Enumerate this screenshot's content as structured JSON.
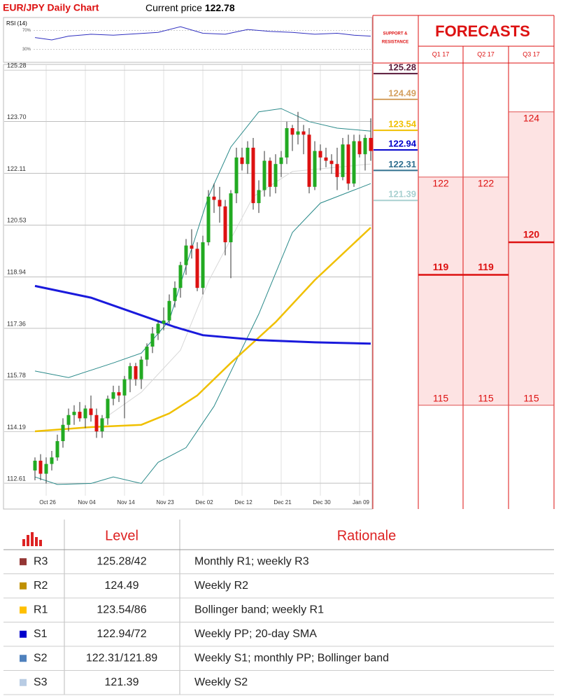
{
  "header": {
    "title": "EUR/JPY Daily Chart",
    "price_label": "Current price",
    "price": "122.78"
  },
  "rsi": {
    "label": "RSI (14)",
    "ylim": [
      10,
      90
    ],
    "levels": [
      {
        "value": 70,
        "label": "70%"
      },
      {
        "value": 30,
        "label": "30%"
      }
    ],
    "x": [
      0,
      3,
      6,
      10,
      14,
      18,
      22,
      26,
      30,
      34,
      38,
      42,
      46,
      50,
      54,
      57,
      60
    ],
    "values": [
      55,
      50,
      58,
      62,
      60,
      63,
      66,
      78,
      64,
      62,
      72,
      68,
      66,
      62,
      64,
      60,
      58
    ],
    "color": "#3030c0"
  },
  "chart_data": {
    "type": "candlestick",
    "categories": [
      null,
      null,
      "Oct 26",
      null,
      null,
      null,
      null,
      null,
      null,
      "Nov 04",
      null,
      null,
      null,
      null,
      null,
      null,
      "Nov 14",
      null,
      null,
      null,
      null,
      null,
      null,
      "Nov 23",
      null,
      null,
      null,
      null,
      null,
      null,
      "Dec 02",
      null,
      null,
      null,
      null,
      null,
      null,
      "Dec 12",
      null,
      null,
      null,
      null,
      null,
      null,
      "Dec 21",
      null,
      null,
      null,
      null,
      null,
      null,
      "Dec 30",
      null,
      null,
      null,
      null,
      null,
      null,
      "Jan 09",
      null,
      null
    ],
    "open": [
      113.0,
      113.3,
      112.9,
      113.2,
      113.4,
      113.9,
      114.4,
      114.7,
      114.8,
      114.6,
      114.9,
      114.7,
      114.2,
      114.6,
      115.2,
      115.4,
      115.3,
      115.8,
      116.2,
      115.8,
      116.4,
      116.8,
      117.2,
      117.5,
      117.6,
      118.2,
      118.6,
      119.3,
      119.9,
      119.8,
      118.6,
      120.0,
      121.4,
      121.3,
      121.1,
      120.0,
      121.5,
      122.6,
      122.4,
      122.9,
      121.2,
      121.6,
      122.5,
      121.7,
      122.4,
      122.6,
      123.5,
      123.3,
      123.4,
      123.3,
      121.7,
      122.8,
      122.6,
      122.5,
      122.4,
      122.0,
      123.0,
      121.8,
      123.1,
      122.7,
      123.2
    ],
    "high": [
      113.4,
      113.5,
      113.4,
      113.6,
      114.1,
      114.6,
      114.9,
      115.0,
      115.1,
      115.0,
      115.3,
      114.9,
      114.7,
      115.3,
      115.6,
      115.6,
      115.9,
      116.3,
      116.3,
      116.5,
      116.9,
      117.4,
      117.6,
      118.0,
      118.4,
      118.8,
      119.4,
      120.1,
      120.4,
      120.0,
      120.2,
      121.6,
      121.8,
      121.7,
      121.3,
      121.6,
      122.9,
      122.9,
      123.1,
      123.2,
      121.9,
      122.8,
      122.6,
      122.7,
      122.8,
      123.7,
      123.6,
      124.0,
      123.6,
      123.5,
      123.1,
      123.0,
      122.9,
      122.7,
      122.9,
      123.2,
      123.3,
      123.3,
      123.3,
      123.3,
      123.8
    ],
    "low": [
      112.7,
      112.7,
      112.6,
      113.0,
      113.3,
      113.7,
      114.2,
      114.4,
      114.5,
      114.3,
      114.5,
      114.0,
      114.0,
      114.4,
      115.0,
      115.1,
      114.6,
      115.4,
      115.6,
      115.5,
      116.2,
      116.6,
      117.0,
      117.3,
      117.5,
      118.0,
      118.3,
      119.0,
      119.5,
      118.5,
      118.4,
      119.9,
      120.9,
      120.6,
      119.6,
      118.9,
      121.2,
      122.2,
      122.1,
      121.0,
      120.9,
      121.4,
      121.4,
      121.5,
      122.0,
      122.4,
      122.8,
      123.0,
      122.7,
      121.5,
      121.6,
      122.2,
      122.3,
      122.1,
      121.6,
      121.9,
      121.6,
      121.7,
      122.6,
      122.2,
      122.5
    ],
    "close": [
      113.3,
      112.9,
      113.2,
      113.4,
      113.9,
      114.4,
      114.7,
      114.8,
      114.6,
      114.9,
      114.7,
      114.2,
      114.6,
      115.2,
      115.4,
      115.3,
      115.8,
      116.2,
      115.8,
      116.4,
      116.8,
      117.2,
      117.5,
      117.6,
      118.2,
      118.6,
      119.3,
      119.9,
      119.8,
      118.6,
      120.0,
      121.4,
      121.3,
      121.1,
      120.0,
      121.5,
      122.6,
      122.4,
      122.9,
      121.2,
      121.6,
      122.5,
      121.7,
      122.4,
      122.6,
      123.5,
      123.3,
      123.4,
      123.3,
      121.7,
      122.8,
      122.6,
      122.5,
      122.4,
      122.0,
      123.0,
      121.8,
      123.1,
      122.7,
      123.2,
      122.8
    ],
    "up_color": "#22aa22",
    "down_color": "#dd1111",
    "series": [
      {
        "color": "#d8d8d8",
        "width": 1,
        "x": [
          12,
          19,
          26,
          31,
          39,
          46,
          60
        ],
        "values": [
          114.55,
          115.4,
          116.69,
          118.8,
          121.4,
          122.17,
          122.4
        ]
      },
      {
        "color": "#2a8a8a",
        "width": 1,
        "x": [
          0,
          6,
          14,
          19,
          24,
          27,
          31,
          35,
          40,
          44,
          49,
          54,
          60
        ],
        "values": [
          116.05,
          115.85,
          116.3,
          116.6,
          117.6,
          119.27,
          121.4,
          122.92,
          124.0,
          124.1,
          123.7,
          123.5,
          123.41
        ]
      },
      {
        "color": "#2a8a8a",
        "width": 1,
        "x": [
          0,
          4,
          10,
          14,
          19,
          22,
          27,
          32,
          40,
          46,
          51,
          60
        ],
        "values": [
          112.8,
          112.57,
          112.6,
          112.8,
          112.6,
          113.25,
          113.7,
          114.97,
          117.8,
          120.3,
          121.2,
          121.8
        ]
      },
      {
        "color": "#f0c000",
        "width": 2.5,
        "x": [
          0,
          10,
          19,
          24,
          29,
          35,
          43,
          50,
          60
        ],
        "values": [
          114.2,
          114.33,
          114.4,
          114.75,
          115.3,
          116.3,
          117.55,
          118.84,
          120.45
        ]
      },
      {
        "color": "#1a1adc",
        "width": 3,
        "x": [
          0,
          10,
          20,
          25,
          30,
          40,
          50,
          60
        ],
        "values": [
          118.66,
          118.3,
          117.7,
          117.4,
          117.15,
          117.0,
          116.93,
          116.89
        ]
      }
    ],
    "ylim": [
      111.86,
      125.39
    ],
    "yticks": [
      {
        "value": 112.61,
        "label": "112.61"
      },
      {
        "value": 114.19,
        "label": "114.19"
      },
      {
        "value": 115.78,
        "label": "115.78"
      },
      {
        "value": 117.36,
        "label": "117.36"
      },
      {
        "value": 118.94,
        "label": "118.94"
      },
      {
        "value": 120.53,
        "label": "120.53"
      },
      {
        "value": 122.11,
        "label": "122.11"
      },
      {
        "value": 123.7,
        "label": "123.70"
      },
      {
        "value": 125.28,
        "label": "125.28"
      }
    ],
    "grid": true
  },
  "support_resistance": {
    "title_lines": [
      "SUPPORT &",
      "RESISTANCE"
    ],
    "levels": [
      {
        "value": 125.28,
        "color": "#5a1a3a"
      },
      {
        "value": 124.49,
        "color": "#d4a060"
      },
      {
        "value": 123.54,
        "color": "#f0c000"
      },
      {
        "value": 122.94,
        "color": "#0000cc"
      },
      {
        "value": 122.31,
        "color": "#31708f"
      },
      {
        "value": 121.39,
        "color": "#a8d0d0"
      }
    ]
  },
  "forecasts": {
    "title": "FORECASTS",
    "periods": [
      {
        "label": "Q1 17",
        "high": 122,
        "mid": 119,
        "low": 115
      },
      {
        "label": "Q2 17",
        "high": 122,
        "mid": 119,
        "low": 115
      },
      {
        "label": "Q3 17",
        "high": 124,
        "mid": 120,
        "low": 115
      }
    ]
  },
  "table": {
    "columns": [
      "Level",
      "Rationale"
    ],
    "rows": [
      {
        "name": "R3",
        "color": "#943634",
        "level": "125.28/42",
        "rationale": "Monthly R1; weekly R3"
      },
      {
        "name": "R2",
        "color": "#c09000",
        "level": "124.49",
        "rationale": "Weekly R2"
      },
      {
        "name": "R1",
        "color": "#ffc000",
        "level": "123.54/86",
        "rationale": "Bollinger band; weekly R1"
      },
      {
        "name": "S1",
        "color": "#0000cc",
        "level": "122.94/72",
        "rationale": "Weekly PP; 20-day SMA"
      },
      {
        "name": "S2",
        "color": "#4f81bd",
        "level": "122.31/121.89",
        "rationale": "Weekly S1; monthly PP; Bollinger band"
      },
      {
        "name": "S3",
        "color": "#b8cce4",
        "level": "121.39",
        "rationale": "Weekly S2"
      }
    ]
  }
}
